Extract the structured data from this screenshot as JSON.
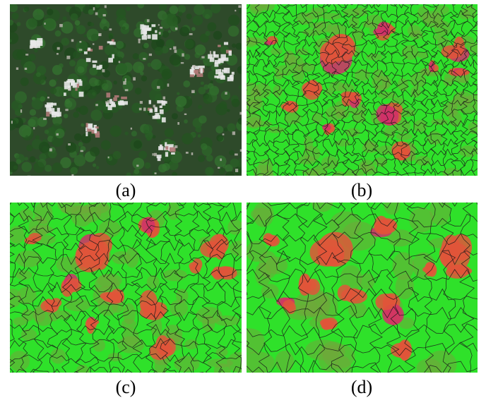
{
  "figure": {
    "panels": [
      {
        "id": "a",
        "caption": "(a)",
        "kind": "satellite-rgb"
      },
      {
        "id": "b",
        "caption": "(b)",
        "kind": "segmentation-fine"
      },
      {
        "id": "c",
        "caption": "(c)",
        "kind": "segmentation-medium"
      },
      {
        "id": "d",
        "caption": "(d)",
        "kind": "segmentation-coarse"
      }
    ]
  },
  "colors": {
    "vegetation_dark": "#2e4a2a",
    "vegetation_green": "#2fe12a",
    "urban_red": "#e0553a",
    "urban_magenta": "#d0306a",
    "boundary": "#1a1a1a",
    "rooftop_white": "#e8e8e8"
  }
}
